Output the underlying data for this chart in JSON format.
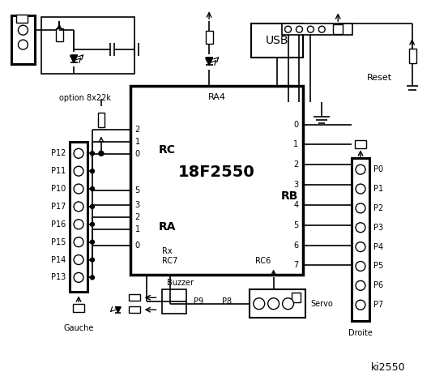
{
  "bg_color": "#ffffff",
  "chip_label": "18F2550",
  "chip_sublabel": "RA4",
  "rc_label": "RC",
  "ra_label": "RA",
  "rb_label": "RB",
  "rx_label": "Rx",
  "rc7_label": "RC7",
  "rc6_label": "RC6",
  "left_connector_labels": [
    "P12",
    "P11",
    "P10",
    "P17",
    "P16",
    "P15",
    "P14",
    "P13"
  ],
  "right_connector_labels": [
    "P0",
    "P1",
    "P2",
    "P3",
    "P4",
    "P5",
    "P6",
    "P7"
  ],
  "gauche_label": "Gauche",
  "droite_label": "Droite",
  "option_label": "option 8x22k",
  "reset_label": "Reset",
  "usb_label": "USB",
  "buzzer_label": "Buzzer",
  "servo_label": "Servo",
  "p8_label": "P8",
  "p9_label": "P9",
  "ki2550_label": "ki2550"
}
